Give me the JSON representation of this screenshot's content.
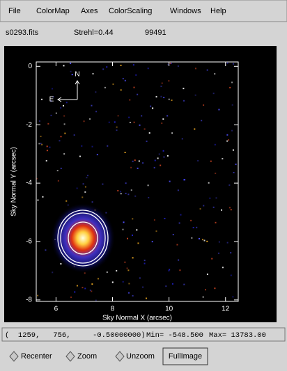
{
  "menu": [
    "File",
    "ColorMap",
    "Axes",
    "ColorScaling",
    "Windows",
    "Help"
  ],
  "info": {
    "file": "s0293.fits",
    "strehl": "Strehl=0.44",
    "value": "99491"
  },
  "plot": {
    "x_label": "Sky Normal X (arcsec)",
    "y_label": "Sky Normal Y (arcsec)",
    "xlim": [
      5.3,
      12.45
    ],
    "ylim": [
      -8.05,
      0.15
    ],
    "xticks": [
      6,
      8,
      10,
      12
    ],
    "yticks": [
      0,
      -2,
      -4,
      -6,
      -8
    ],
    "compass": {
      "north": "N",
      "east": "E"
    }
  },
  "status": {
    "position": "(  1259,   756,     -0.50000000)",
    "min": "Min= -548.500",
    "max": "Max= 13783.00"
  },
  "buttons": [
    "Recenter",
    "Zoom",
    "Unzoom",
    "FullImage"
  ]
}
